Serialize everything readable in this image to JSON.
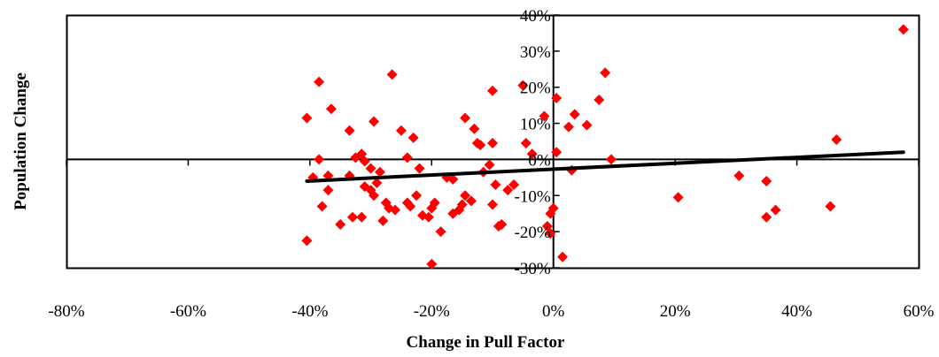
{
  "chart_data": {
    "type": "scatter",
    "title": "",
    "xlabel": "Change in Pull Factor",
    "ylabel": "Population Change",
    "xlim": [
      -80,
      60
    ],
    "ylim": [
      -30,
      40
    ],
    "x_ticks": [
      "-80%",
      "-60%",
      "-40%",
      "-20%",
      "0%",
      "20%",
      "40%",
      "60%"
    ],
    "y_ticks": [
      "40%",
      "30%",
      "20%",
      "10%",
      "0%",
      "-10%",
      "-20%",
      "-30%"
    ],
    "x_tick_values": [
      -80,
      -60,
      -40,
      -20,
      0,
      20,
      40,
      60
    ],
    "y_tick_values": [
      40,
      30,
      20,
      10,
      0,
      -10,
      -20,
      -30
    ],
    "grid": false,
    "legend": "none",
    "marker": "diamond",
    "marker_color": "#ff0000",
    "trendline_color": "#000000",
    "series": [
      {
        "points": [
          [
            -40.5,
            11.5
          ],
          [
            -38.5,
            21.5
          ],
          [
            -36.5,
            14.0
          ],
          [
            -33.5,
            8.0
          ],
          [
            -29.5,
            10.5
          ],
          [
            -26.5,
            23.5
          ],
          [
            -25.0,
            8.0
          ],
          [
            -23.0,
            6.0
          ],
          [
            -24.0,
            0.5
          ],
          [
            -32.5,
            0.5
          ],
          [
            -31.5,
            1.5
          ],
          [
            -31.0,
            -0.5
          ],
          [
            -30.0,
            -2.5
          ],
          [
            -28.5,
            -3.5
          ],
          [
            -33.5,
            -4.5
          ],
          [
            -37.0,
            -4.5
          ],
          [
            -39.5,
            -5.0
          ],
          [
            -38.5,
            0.0
          ],
          [
            -37.0,
            -8.5
          ],
          [
            -38.0,
            -13.0
          ],
          [
            -40.5,
            -22.5
          ],
          [
            -35.0,
            -18.0
          ],
          [
            -33.0,
            -16.0
          ],
          [
            -31.5,
            -16.0
          ],
          [
            -31.0,
            -7.5
          ],
          [
            -30.0,
            -8.5
          ],
          [
            -29.5,
            -10.0
          ],
          [
            -29.0,
            -6.5
          ],
          [
            -27.5,
            -12.0
          ],
          [
            -27.0,
            -13.5
          ],
          [
            -28.0,
            -17.0
          ],
          [
            -26.0,
            -14.0
          ],
          [
            -24.0,
            -12.0
          ],
          [
            -23.5,
            -13.0
          ],
          [
            -22.5,
            -10.0
          ],
          [
            -21.5,
            -15.5
          ],
          [
            -20.5,
            -16.0
          ],
          [
            -20.0,
            -13.5
          ],
          [
            -19.5,
            -12.0
          ],
          [
            -18.5,
            -20.0
          ],
          [
            -20.0,
            -29.0
          ],
          [
            -22.0,
            -2.5
          ],
          [
            -17.5,
            -5.0
          ],
          [
            -16.5,
            -5.5
          ],
          [
            -16.5,
            -15.0
          ],
          [
            -15.5,
            -14.0
          ],
          [
            -15.0,
            -12.5
          ],
          [
            -14.5,
            -10.0
          ],
          [
            -13.5,
            -11.5
          ],
          [
            -14.5,
            11.5
          ],
          [
            -13.0,
            8.5
          ],
          [
            -12.5,
            4.5
          ],
          [
            -12.0,
            4.0
          ],
          [
            -11.5,
            -3.5
          ],
          [
            -10.5,
            -1.5
          ],
          [
            -10.0,
            4.5
          ],
          [
            -10.0,
            19.0
          ],
          [
            -9.5,
            -7.0
          ],
          [
            -10.0,
            -12.5
          ],
          [
            -9.0,
            -18.5
          ],
          [
            -8.5,
            -18.0
          ],
          [
            -7.5,
            -8.5
          ],
          [
            -6.5,
            -7.0
          ],
          [
            -5.0,
            20.5
          ],
          [
            -4.5,
            4.5
          ],
          [
            -3.5,
            1.5
          ],
          [
            -1.5,
            12.0
          ],
          [
            -1.0,
            -18.5
          ],
          [
            -0.5,
            -20.5
          ],
          [
            -0.5,
            -15.0
          ],
          [
            0.0,
            -13.5
          ],
          [
            0.5,
            17.0
          ],
          [
            0.5,
            2.0
          ],
          [
            1.5,
            -27.0
          ],
          [
            2.5,
            9.0
          ],
          [
            3.0,
            -3.0
          ],
          [
            3.5,
            12.5
          ],
          [
            5.5,
            9.5
          ],
          [
            7.5,
            16.5
          ],
          [
            8.5,
            24.0
          ],
          [
            9.5,
            0.0
          ],
          [
            20.5,
            -10.5
          ],
          [
            30.5,
            -4.5
          ],
          [
            35.0,
            -6.0
          ],
          [
            35.0,
            -16.0
          ],
          [
            36.5,
            -14.0
          ],
          [
            45.5,
            -13.0
          ],
          [
            46.5,
            5.5
          ],
          [
            57.5,
            36.0
          ]
        ]
      }
    ],
    "trendline": {
      "type": "linear",
      "x": [
        -40.5,
        57.5
      ],
      "y": [
        -6.0,
        2.0
      ]
    }
  }
}
